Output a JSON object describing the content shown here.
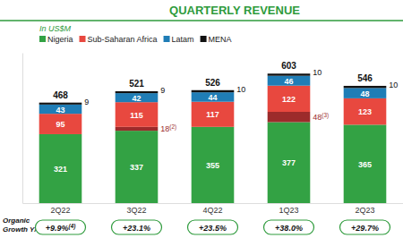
{
  "chart_data": {
    "type": "bar",
    "title": "QUARTERLY REVENUE",
    "subtitle": "In US$M",
    "categories": [
      "2Q22",
      "3Q22",
      "4Q22",
      "1Q23",
      "2Q23"
    ],
    "series": [
      {
        "name": "Nigeria",
        "color": "#33a244",
        "values": [
          321,
          337,
          355,
          377,
          365
        ]
      },
      {
        "color": "#9c2b2b",
        "values": [
          null,
          18,
          null,
          48,
          null
        ],
        "value_labels": [
          null,
          "18(2)",
          null,
          "48(3)",
          null
        ]
      },
      {
        "name": "Sub-Saharan Africa",
        "color": "#e8483f",
        "values": [
          95,
          115,
          117,
          122,
          123
        ]
      },
      {
        "name": "Latam",
        "color": "#1f7db6",
        "values": [
          43,
          42,
          44,
          46,
          48
        ]
      },
      {
        "name": "MENA",
        "color": "#111111",
        "values": [
          9,
          9,
          10,
          10,
          10
        ]
      }
    ],
    "totals": [
      468,
      521,
      526,
      603,
      546
    ],
    "organic_growth": {
      "label": [
        "Organic",
        "Growth Y/Y"
      ],
      "labels": [
        "+9.9%(4)",
        "+23.1%",
        "+23.5%",
        "+38.0%",
        "+29.7%"
      ]
    },
    "ylim": [
      0,
      700
    ],
    "stacked": true,
    "data_labels": true,
    "legend": "top-left",
    "tick_labels": "x"
  }
}
